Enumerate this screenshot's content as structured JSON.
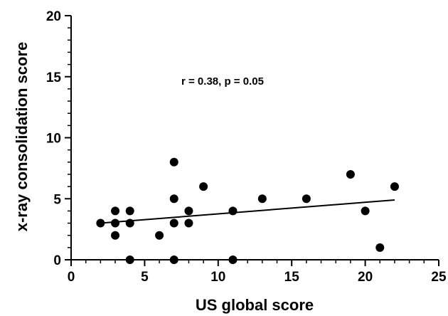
{
  "chart_data": {
    "type": "scatter",
    "title": "",
    "xlabel": "US global score",
    "ylabel": "x-ray consolidation score",
    "xlim": [
      0,
      25
    ],
    "ylim": [
      0,
      20
    ],
    "xticks": [
      0,
      5,
      10,
      15,
      20,
      25
    ],
    "yticks": [
      0,
      5,
      10,
      15,
      20
    ],
    "grid": false,
    "annotation": "r = 0.38, p = 0.05",
    "points": [
      {
        "x": 2,
        "y": 3
      },
      {
        "x": 3,
        "y": 4
      },
      {
        "x": 3,
        "y": 3
      },
      {
        "x": 3,
        "y": 2
      },
      {
        "x": 4,
        "y": 4
      },
      {
        "x": 4,
        "y": 3
      },
      {
        "x": 4,
        "y": 0
      },
      {
        "x": 6,
        "y": 2
      },
      {
        "x": 7,
        "y": 8
      },
      {
        "x": 7,
        "y": 5
      },
      {
        "x": 7,
        "y": 3
      },
      {
        "x": 7,
        "y": 0
      },
      {
        "x": 8,
        "y": 4
      },
      {
        "x": 8,
        "y": 3
      },
      {
        "x": 9,
        "y": 6
      },
      {
        "x": 11,
        "y": 4
      },
      {
        "x": 11,
        "y": 0
      },
      {
        "x": 13,
        "y": 5
      },
      {
        "x": 16,
        "y": 5
      },
      {
        "x": 19,
        "y": 7
      },
      {
        "x": 20,
        "y": 4
      },
      {
        "x": 21,
        "y": 1
      },
      {
        "x": 22,
        "y": 6
      }
    ],
    "fit_line": {
      "x": [
        2,
        22
      ],
      "y": [
        3.0,
        4.9
      ]
    }
  }
}
